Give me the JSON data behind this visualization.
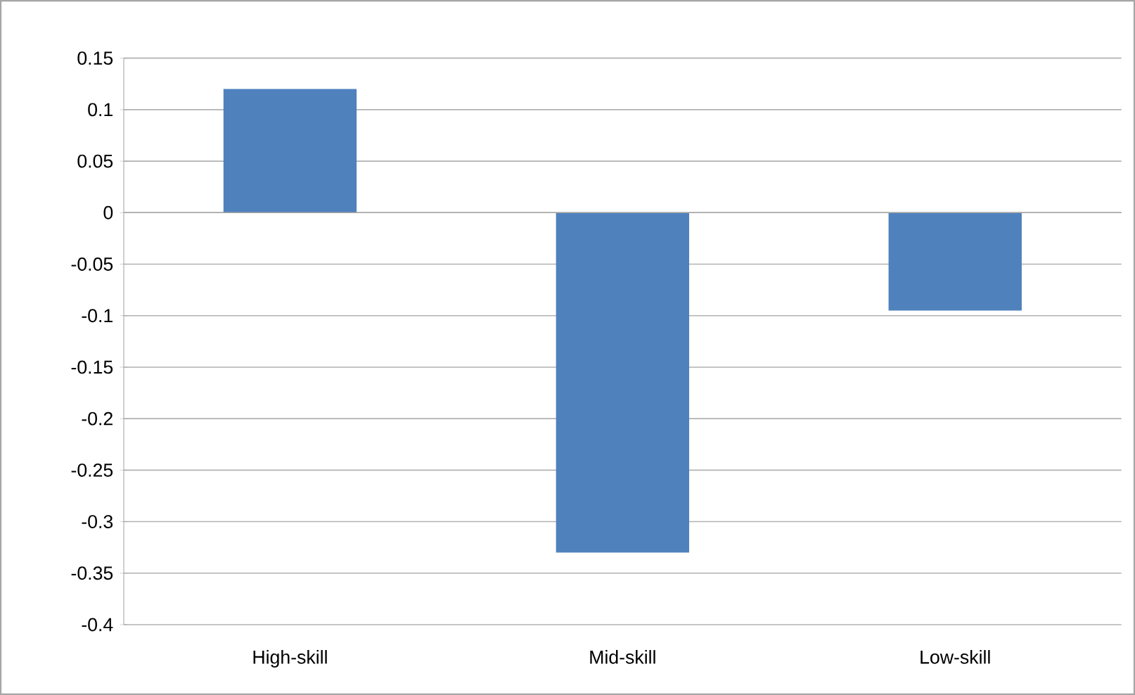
{
  "chart_data": {
    "type": "bar",
    "categories": [
      "High-skill",
      "Mid-skill",
      "Low-skill"
    ],
    "values": [
      0.12,
      -0.33,
      -0.095
    ],
    "color": "#4f81bd",
    "ylim": [
      -0.4,
      0.15
    ],
    "yticks": [
      -0.4,
      -0.35,
      -0.3,
      -0.25,
      -0.2,
      -0.15,
      -0.1,
      -0.05,
      0,
      0.05,
      0.1,
      0.15
    ],
    "grid": "y"
  }
}
